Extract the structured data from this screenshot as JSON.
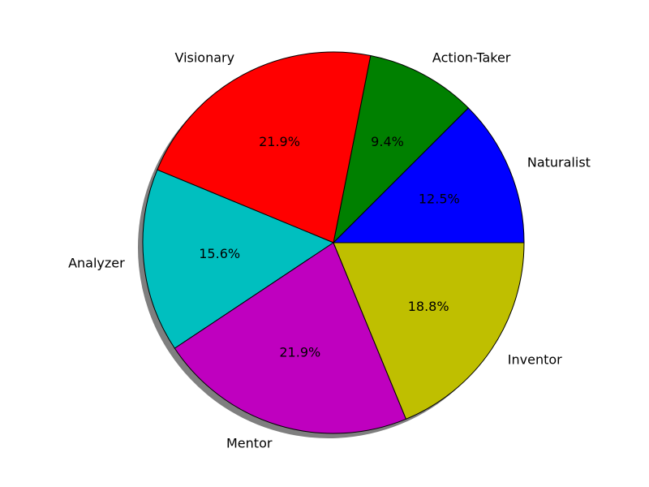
{
  "chart_data": {
    "type": "pie",
    "title": "",
    "categories": [
      "Naturalist",
      "Action-Taker",
      "Visionary",
      "Analyzer",
      "Mentor",
      "Inventor"
    ],
    "values": [
      12.5,
      9.4,
      21.9,
      15.6,
      21.9,
      18.8
    ],
    "value_labels": [
      "12.5%",
      "9.4%",
      "21.9%",
      "15.6%",
      "21.9%",
      "18.8%"
    ],
    "colors": [
      "#0000ff",
      "#008000",
      "#ff0000",
      "#00bfbf",
      "#bf00bf",
      "#bfbf00"
    ],
    "shadow": true,
    "start_angle_deg": 0,
    "direction": "counterclockwise"
  }
}
